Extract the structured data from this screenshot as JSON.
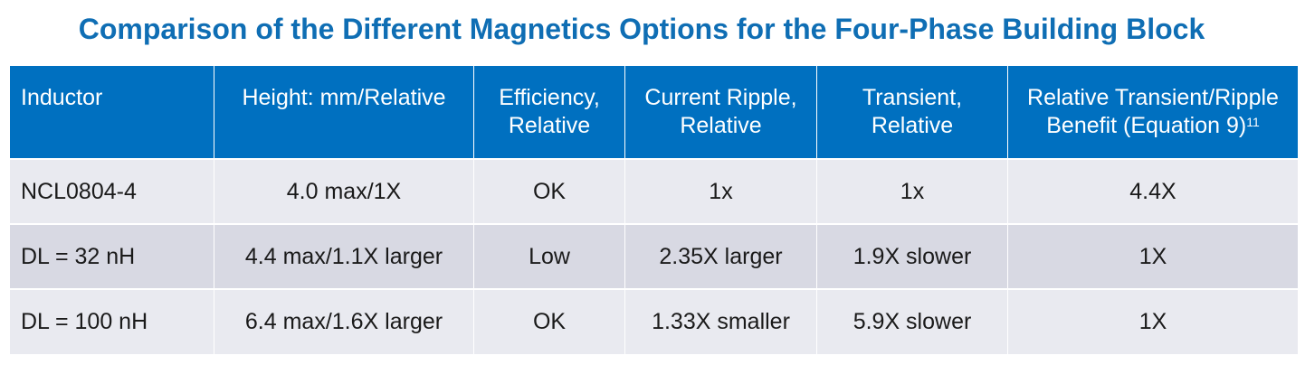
{
  "title": "Comparison of the Different Magnetics Options for the Four-Phase Building Block",
  "table": {
    "headers": [
      "Inductor",
      "Height: mm/Relative",
      "Efficiency, Relative",
      "Current Ripple, Relative",
      "Transient, Relative",
      "Relative Transient/Ripple Benefit (Equation 9)"
    ],
    "header_superscript": "11",
    "rows": [
      [
        "NCL0804-4",
        "4.0 max/1X",
        "OK",
        "1x",
        "1x",
        "4.4X"
      ],
      [
        "DL = 32 nH",
        "4.4 max/1.1X larger",
        "Low",
        "2.35X larger",
        "1.9X slower",
        "1X"
      ],
      [
        "DL = 100 nH",
        "6.4 max/1.6X larger",
        "OK",
        "1.33X smaller",
        "5.9X slower",
        "1X"
      ]
    ]
  },
  "colors": {
    "title": "#0f6eb4",
    "header_bg": "#0070c0",
    "row_light": "#e9eaf0",
    "row_dark": "#d8d9e3"
  }
}
